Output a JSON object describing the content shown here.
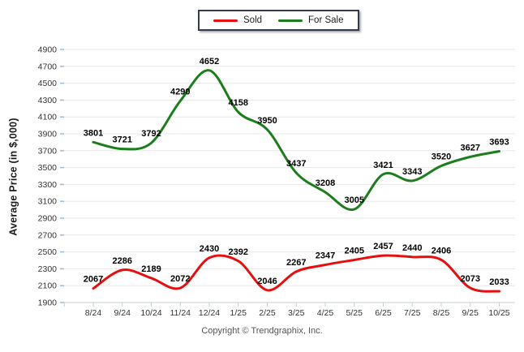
{
  "chart_data": {
    "type": "line",
    "smooth": true,
    "point_labels": true,
    "grid": true,
    "legend_position": "top-center",
    "title": "",
    "xlabel": "",
    "ylabel": "Average Price (in $,000)",
    "ylim": [
      1900,
      4900
    ],
    "ytick_step": 200,
    "categories": [
      "8/24",
      "9/24",
      "10/24",
      "11/24",
      "12/24",
      "1/25",
      "2/25",
      "3/25",
      "4/25",
      "5/25",
      "6/25",
      "7/25",
      "8/25",
      "9/25",
      "10/25"
    ],
    "series": [
      {
        "name": "Sold",
        "color": "#e60f0f",
        "values": [
          2067,
          2286,
          2189,
          2072,
          2430,
          2392,
          2046,
          2267,
          2347,
          2405,
          2457,
          2440,
          2406,
          2073,
          2033
        ]
      },
      {
        "name": "For Sale",
        "color": "#1c7d1c",
        "values": [
          3801,
          3721,
          3792,
          4290,
          4652,
          4158,
          3950,
          3437,
          3208,
          3005,
          3421,
          3343,
          3520,
          3627,
          3693
        ]
      }
    ]
  },
  "y_axis": {
    "title": "Average Price (in $,000)"
  },
  "footer": {
    "copyright": "Copyright © Trendgraphix, Inc."
  },
  "colors": {
    "grid": "#e7e7e7",
    "axis": "#c3ccd1",
    "axis_accent_tick": "#9fb9d0",
    "tick_label": "#333333",
    "data_label": "#000000",
    "background": "#ffffff"
  }
}
